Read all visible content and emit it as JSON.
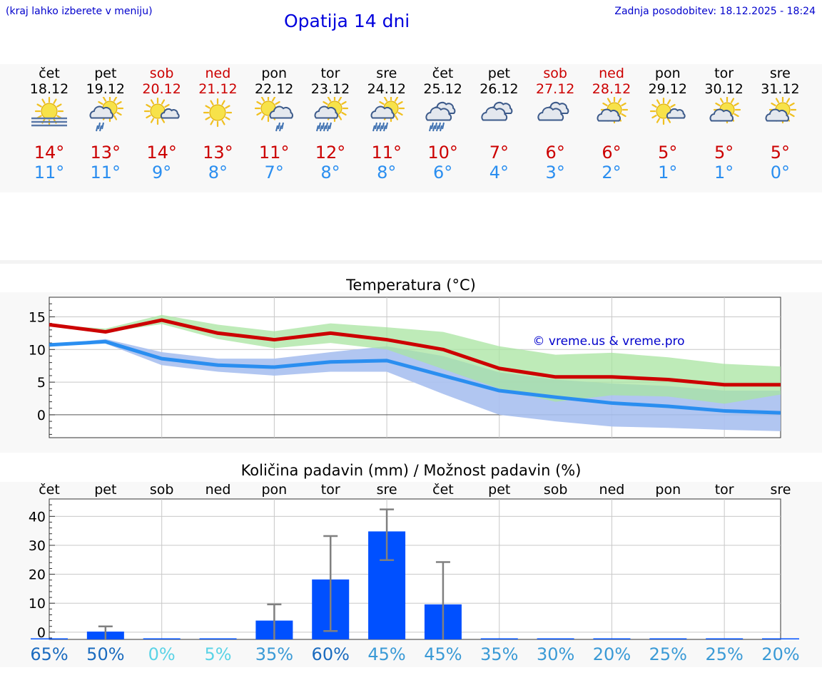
{
  "header": {
    "hint": "(kraj lahko izberete v meniju)",
    "title": "Opatija 14 dni",
    "updated": "Zadnja posodobitev: 18.12.2025 - 18:24"
  },
  "colors": {
    "weekend": "#cc0000",
    "weekday": "#000000",
    "tmax": "#cc0000",
    "tmin": "#2a8ef0",
    "bar": "#0050ff",
    "band_max": "#a8e4a0",
    "band_min": "#a8c0f0"
  },
  "days": [
    {
      "name": "čet",
      "date": "18.12",
      "weekend": false,
      "icon": "sun-fog-icon",
      "tmax": "14°",
      "tmin": "11°"
    },
    {
      "name": "pet",
      "date": "19.12",
      "weekend": false,
      "icon": "sun-cloud-rain-icon",
      "tmax": "13°",
      "tmin": "11°"
    },
    {
      "name": "sob",
      "date": "20.12",
      "weekend": true,
      "icon": "sun-small-cloud-icon",
      "tmax": "14°",
      "tmin": "9°"
    },
    {
      "name": "ned",
      "date": "21.12",
      "weekend": true,
      "icon": "sun-icon",
      "tmax": "13°",
      "tmin": "8°"
    },
    {
      "name": "pon",
      "date": "22.12",
      "weekend": false,
      "icon": "sun-cloud-light-rain-icon",
      "tmax": "11°",
      "tmin": "7°"
    },
    {
      "name": "tor",
      "date": "23.12",
      "weekend": false,
      "icon": "sun-cloud-heavy-rain-icon",
      "tmax": "12°",
      "tmin": "8°"
    },
    {
      "name": "sre",
      "date": "24.12",
      "weekend": false,
      "icon": "sun-cloud-heavy-rain-icon",
      "tmax": "11°",
      "tmin": "8°"
    },
    {
      "name": "čet",
      "date": "25.12",
      "weekend": false,
      "icon": "cloud-heavy-rain-icon",
      "tmax": "10°",
      "tmin": "6°"
    },
    {
      "name": "pet",
      "date": "26.12",
      "weekend": false,
      "icon": "cloud-icon",
      "tmax": "7°",
      "tmin": "4°"
    },
    {
      "name": "sob",
      "date": "27.12",
      "weekend": true,
      "icon": "cloud-icon",
      "tmax": "6°",
      "tmin": "3°"
    },
    {
      "name": "ned",
      "date": "28.12",
      "weekend": true,
      "icon": "sun-cloud-icon",
      "tmax": "6°",
      "tmin": "2°"
    },
    {
      "name": "pon",
      "date": "29.12",
      "weekend": false,
      "icon": "sun-small-cloud-icon",
      "tmax": "5°",
      "tmin": "1°"
    },
    {
      "name": "tor",
      "date": "30.12",
      "weekend": false,
      "icon": "sun-cloud-icon",
      "tmax": "5°",
      "tmin": "1°"
    },
    {
      "name": "sre",
      "date": "31.12",
      "weekend": false,
      "icon": "sun-cloud-icon",
      "tmax": "5°",
      "tmin": "0°"
    }
  ],
  "chart_data": [
    {
      "type": "line",
      "title": "Temperatura (°C)",
      "watermark": "© vreme.us & vreme.pro",
      "xlabel": "",
      "ylabel": "",
      "ylim": [
        -3.5,
        18
      ],
      "yticks": [
        0,
        5,
        10,
        15
      ],
      "grid": true,
      "x": [
        0,
        1,
        2,
        3,
        4,
        5,
        6,
        7,
        8,
        9,
        10,
        11,
        12,
        13
      ],
      "series": [
        {
          "name": "tmax",
          "values": [
            13.8,
            12.7,
            14.5,
            12.5,
            11.5,
            12.5,
            11.5,
            10.0,
            7.1,
            5.8,
            5.8,
            5.4,
            4.6,
            4.6
          ]
        },
        {
          "name": "tmin",
          "values": [
            10.7,
            11.2,
            8.6,
            7.6,
            7.3,
            8.1,
            8.3,
            6.0,
            3.7,
            2.7,
            1.8,
            1.3,
            0.6,
            0.3
          ]
        }
      ],
      "band_max": {
        "upper": [
          13.8,
          13.2,
          15.3,
          13.8,
          12.8,
          14.0,
          13.4,
          12.7,
          10.5,
          9.2,
          9.5,
          8.8,
          7.8,
          7.4
        ],
        "lower": [
          13.8,
          12.6,
          13.9,
          11.6,
          10.2,
          11.0,
          10.0,
          7.0,
          4.0,
          2.0,
          3.0,
          2.8,
          1.7,
          3.1
        ]
      },
      "band_min": {
        "upper": [
          10.7,
          11.6,
          9.6,
          8.6,
          8.6,
          9.6,
          10.5,
          9.0,
          6.5,
          5.4,
          4.8,
          4.4,
          3.7,
          3.7
        ]
      },
      "band_min_lower": [
        10.7,
        10.9,
        7.6,
        6.6,
        6.0,
        6.6,
        6.6,
        3.2,
        0.0,
        -1.0,
        -1.8,
        -2.0,
        -2.3,
        -2.5
      ]
    },
    {
      "type": "bar",
      "title": "Količina padavin (mm) / Možnost padavin (%)",
      "xlabel": "",
      "ylabel": "",
      "ylim": [
        -2.5,
        46
      ],
      "yticks": [
        0,
        10,
        20,
        30,
        40
      ],
      "grid": true,
      "categories": [
        "čet",
        "pet",
        "sob",
        "ned",
        "pon",
        "tor",
        "sre",
        "čet",
        "pet",
        "sob",
        "ned",
        "pon",
        "tor",
        "sre"
      ],
      "values": [
        0,
        0.2,
        0,
        0,
        4.0,
        18.2,
        34.8,
        9.6,
        0,
        0,
        0,
        0,
        0,
        0
      ],
      "error_low": [
        0,
        0,
        0,
        0,
        0,
        0.4,
        24.9,
        0,
        0,
        0,
        0,
        0,
        0,
        0
      ],
      "error_high": [
        0,
        2.0,
        0,
        0,
        9.6,
        33.2,
        42.4,
        24.2,
        0,
        0,
        0,
        0,
        0,
        0
      ],
      "probabilities": [
        "65%",
        "50%",
        "0%",
        "5%",
        "35%",
        "60%",
        "45%",
        "45%",
        "35%",
        "30%",
        "20%",
        "25%",
        "25%",
        "20%"
      ],
      "prob_colors": [
        "#1a6bbf",
        "#1a6bbf",
        "#5bd3e6",
        "#5bd3e6",
        "#3a9ad6",
        "#1a6bbf",
        "#3a9ad6",
        "#3a9ad6",
        "#3a9ad6",
        "#3a9ad6",
        "#3a9ad6",
        "#3a9ad6",
        "#3a9ad6",
        "#3a9ad6"
      ]
    }
  ]
}
